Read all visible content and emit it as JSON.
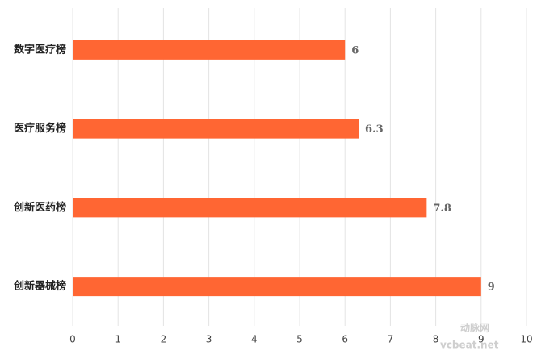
{
  "chart_data": {
    "type": "bar",
    "orientation": "horizontal",
    "categories": [
      "数字医疗榜",
      "医疗服务榜",
      "创新医药榜",
      "创新器械榜"
    ],
    "values": [
      6,
      6.3,
      7.8,
      9
    ],
    "color": "#ff6633",
    "xlim": [
      0,
      10
    ],
    "xticks": [
      0,
      1,
      2,
      3,
      4,
      5,
      6,
      7,
      8,
      9,
      10
    ],
    "grid": true,
    "watermark": [
      "动脉网",
      "vcbeat.net"
    ]
  }
}
